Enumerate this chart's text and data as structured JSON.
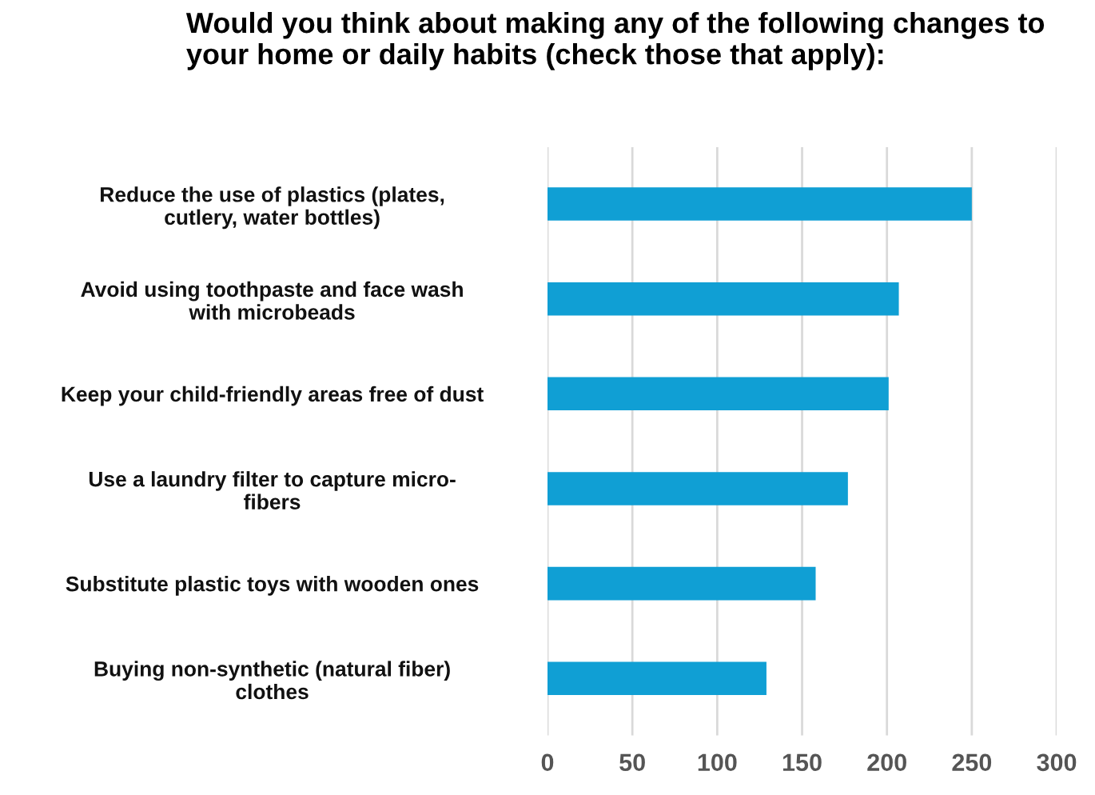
{
  "chart_data": {
    "type": "bar",
    "orientation": "horizontal",
    "title": "Would you think about making any of the following changes to your home or daily habits (check those that apply):",
    "categories": [
      "Reduce the use of plastics (plates,\ncutlery, water bottles)",
      "Avoid using toothpaste and face wash\nwith microbeads",
      "Keep your child-friendly areas free of dust",
      "Use a laundry filter to capture micro-\nfibers",
      "Substitute plastic toys with wooden ones",
      "Buying non-synthetic (natural fiber)\nclothes"
    ],
    "values": [
      250,
      207,
      201,
      177,
      158,
      129
    ],
    "color": "#109fd4",
    "xlim": [
      0,
      300
    ],
    "xticks": [
      0,
      50,
      100,
      150,
      200,
      250,
      300
    ],
    "grid": "x"
  }
}
